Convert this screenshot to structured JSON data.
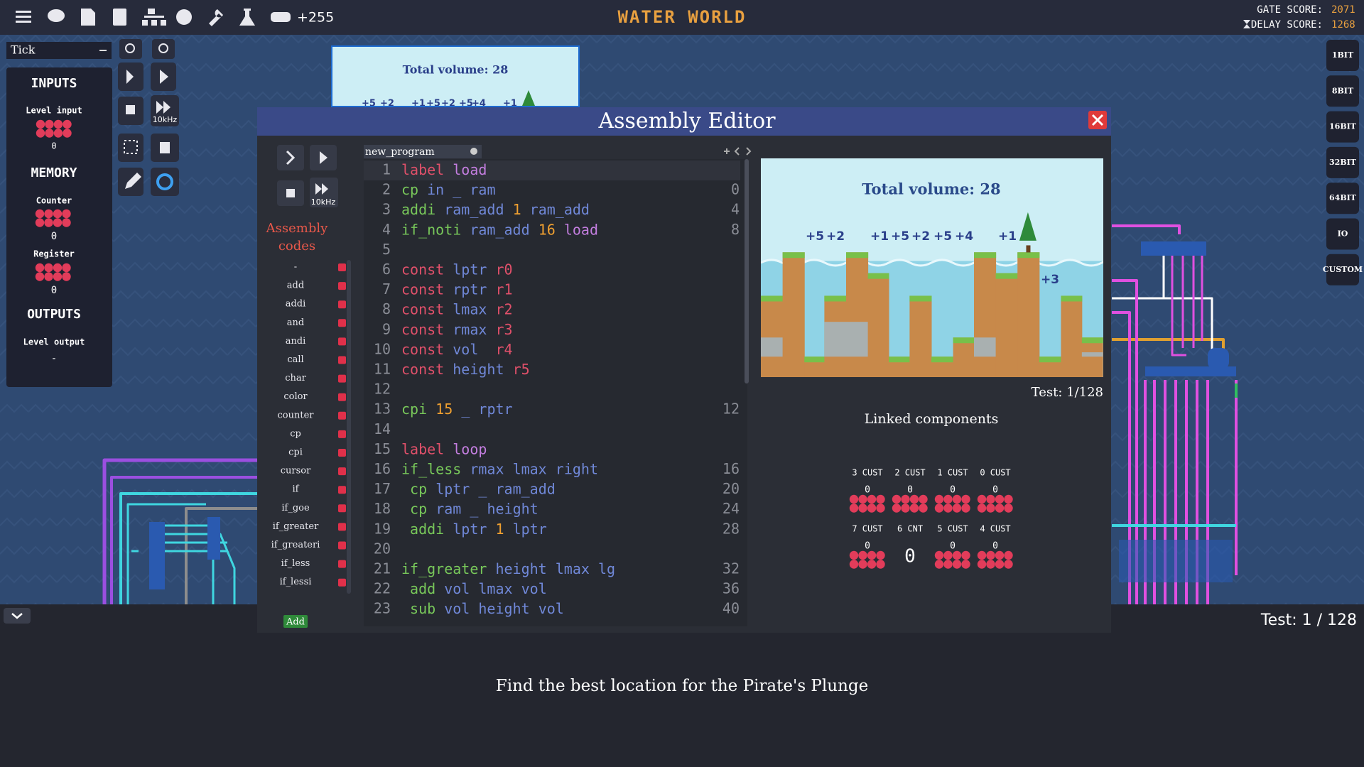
{
  "header": {
    "title": "WATER WORLD",
    "counter": "+255",
    "gate_score_label": "GATE SCORE:",
    "gate_score": 2071,
    "delay_score_label": "DELAY SCORE:",
    "delay_score": 1268
  },
  "toolbar": {
    "clock_mode": "Tick",
    "speed": "10kHz"
  },
  "side_panel": {
    "inputs_title": "INPUTS",
    "level_input_label": "Level input",
    "level_input_value": 0,
    "memory_title": "MEMORY",
    "counter_label": "Counter",
    "counter_value": 0,
    "register_label": "Register",
    "register_value": 0,
    "outputs_title": "OUTPUTS",
    "level_output_label": "Level output",
    "level_output_value": "-"
  },
  "background_preview": {
    "title": "Total volume: 28",
    "labels": [
      "+5",
      "+2",
      "+1",
      "+5",
      "+2",
      "+5",
      "+4",
      "+1"
    ]
  },
  "component_buttons": [
    "1BIT",
    "8BIT",
    "16BIT",
    "32BIT",
    "64BIT",
    "IO",
    "CUSTOM"
  ],
  "editor": {
    "title": "Assembly Editor",
    "speed": "10kHz",
    "codes_title": "Assembly codes",
    "codes": [
      "-",
      "add",
      "addi",
      "and",
      "andi",
      "call",
      "char",
      "color",
      "counter",
      "cp",
      "cpi",
      "cursor",
      "if",
      "if_goe",
      "if_greater",
      "if_greateri",
      "if_less",
      "if_lessi"
    ],
    "add_button": "Add",
    "tab": "new_program",
    "lines": [
      {
        "number": 1,
        "code": "label load"
      },
      {
        "number": 2,
        "code": "cp in _ ram",
        "address": 0
      },
      {
        "number": 3,
        "code": "addi ram_add 1 ram_add",
        "address": 4
      },
      {
        "number": 4,
        "code": "if_noti ram_add 16 load",
        "address": 8
      },
      {
        "number": 5
      },
      {
        "number": 6,
        "code": "const lptr r0"
      },
      {
        "number": 7,
        "code": "const rptr r1"
      },
      {
        "number": 8,
        "code": "const lmax r2"
      },
      {
        "number": 9,
        "code": "const rmax r3"
      },
      {
        "number": 10,
        "code": "const vol  r4"
      },
      {
        "number": 11,
        "code": "const height r5"
      },
      {
        "number": 12
      },
      {
        "number": 13,
        "code": "cpi 15 _ rptr",
        "address": 12
      },
      {
        "number": 14
      },
      {
        "number": 15,
        "code": "label loop"
      },
      {
        "number": 16,
        "code": "if_less rmax lmax right",
        "address": 16
      },
      {
        "number": 17,
        "code": " cp lptr _ ram_add",
        "address": 20
      },
      {
        "number": 18,
        "code": " cp ram _ height",
        "address": 24
      },
      {
        "number": 19,
        "code": " addi lptr 1 lptr",
        "address": 28
      },
      {
        "number": 20
      },
      {
        "number": 21,
        "code": "if_greater height lmax lg",
        "address": 32
      },
      {
        "number": 22,
        "code": " add vol lmax vol",
        "address": 36
      },
      {
        "number": 23,
        "code": " sub vol height vol",
        "address": 40
      }
    ],
    "preview": {
      "title": "Total volume: 28",
      "labels": [
        "+5",
        "+2",
        "+1",
        "+5",
        "+2",
        "+5",
        "+4",
        "+1",
        "+3"
      ],
      "test": "Test: 1/128"
    },
    "linked_title": "Linked components",
    "components": [
      {
        "label": "3 CUST",
        "value": 0
      },
      {
        "label": "2 CUST",
        "value": 0
      },
      {
        "label": "1 CUST",
        "value": 0
      },
      {
        "label": "0 CUST",
        "value": 0
      },
      {
        "label": "7 CUST",
        "value": 0
      },
      {
        "label": "6 CNT",
        "value": 0
      },
      {
        "label": "5 CUST",
        "value": 0
      },
      {
        "label": "4 CUST",
        "value": 0
      }
    ]
  },
  "footer": {
    "test": "Test: 1 / 128",
    "description": "Find the best location for the Pirate's Plunge"
  }
}
